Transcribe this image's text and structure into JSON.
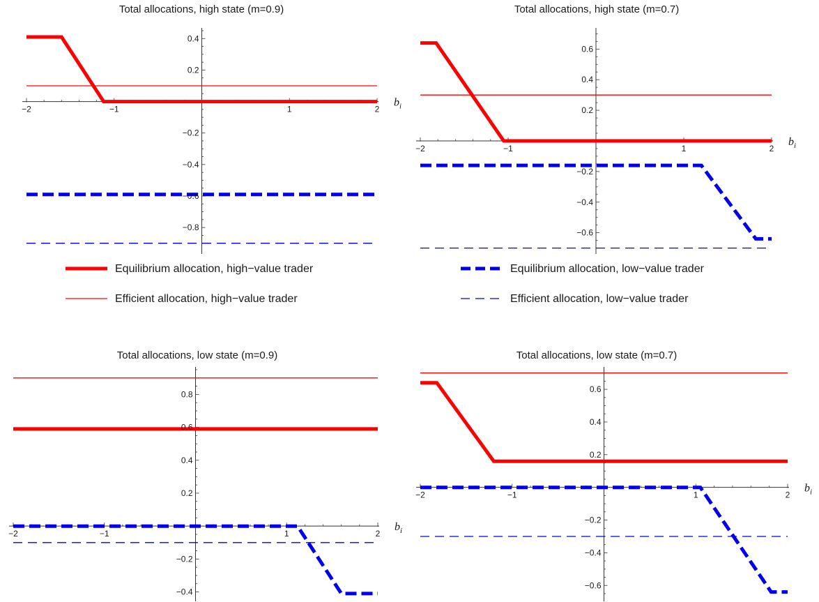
{
  "chart_data": [
    {
      "type": "line",
      "title": "Total allocations, high state (m=0.9)",
      "xlabel": "b",
      "xlabel_sub": "i",
      "xlim": [
        -2,
        2
      ],
      "ylim": [
        -0.95,
        0.45
      ],
      "xticks": [
        {
          "v": -2,
          "label": "−2"
        },
        {
          "v": -1,
          "label": "−1"
        },
        {
          "v": 1,
          "label": "1"
        },
        {
          "v": 2,
          "label": "2"
        }
      ],
      "yticks": [
        {
          "v": 0.4,
          "label": "0.4"
        },
        {
          "v": 0.2,
          "label": "0.2"
        },
        {
          "v": -0.2,
          "label": "−0.2"
        },
        {
          "v": -0.4,
          "label": "−0.4"
        },
        {
          "v": -0.6,
          "label": "−0.6"
        },
        {
          "v": -0.8,
          "label": "−0.8"
        }
      ],
      "series": [
        {
          "key": "eq_high",
          "x": [
            -2,
            -1.6,
            -1.12,
            2
          ],
          "y": [
            0.41,
            0.41,
            0,
            0
          ]
        },
        {
          "key": "eff_high",
          "x": [
            -2,
            2
          ],
          "y": [
            0.1,
            0.1
          ]
        },
        {
          "key": "eq_low",
          "x": [
            -2,
            2
          ],
          "y": [
            -0.59,
            -0.59
          ]
        },
        {
          "key": "eff_low",
          "x": [
            -2,
            2
          ],
          "y": [
            -0.9,
            -0.9
          ]
        }
      ]
    },
    {
      "type": "line",
      "title": "Total allocations, high state (m=0.7)",
      "xlabel": "b",
      "xlabel_sub": "i",
      "xlim": [
        -2,
        2
      ],
      "ylim": [
        -0.72,
        0.72
      ],
      "xticks": [
        {
          "v": -2,
          "label": "−2"
        },
        {
          "v": -1,
          "label": "−1"
        },
        {
          "v": 1,
          "label": "1"
        },
        {
          "v": 2,
          "label": "2"
        }
      ],
      "yticks": [
        {
          "v": 0.6,
          "label": "0.6"
        },
        {
          "v": 0.4,
          "label": "0.4"
        },
        {
          "v": 0.2,
          "label": "0.2"
        },
        {
          "v": -0.2,
          "label": "−0.2"
        },
        {
          "v": -0.4,
          "label": "−0.4"
        },
        {
          "v": -0.6,
          "label": "−0.6"
        }
      ],
      "series": [
        {
          "key": "eq_high",
          "x": [
            -2,
            -1.82,
            -1.05,
            2
          ],
          "y": [
            0.64,
            0.64,
            0,
            0
          ]
        },
        {
          "key": "eff_high",
          "x": [
            -2,
            2
          ],
          "y": [
            0.3,
            0.3
          ]
        },
        {
          "key": "eq_low",
          "x": [
            -2,
            1.2,
            1.82,
            2
          ],
          "y": [
            -0.16,
            -0.16,
            -0.64,
            -0.64
          ]
        },
        {
          "key": "eff_low",
          "x": [
            -2,
            2
          ],
          "y": [
            -0.7,
            -0.7
          ]
        }
      ]
    },
    {
      "type": "line",
      "title": "Total allocations, low state (m=0.9)",
      "xlabel": "b",
      "xlabel_sub": "i",
      "xlim": [
        -2,
        2
      ],
      "ylim": [
        -0.44,
        0.95
      ],
      "xticks": [
        {
          "v": -2,
          "label": "−2"
        },
        {
          "v": -1,
          "label": "−1"
        },
        {
          "v": 1,
          "label": "1"
        },
        {
          "v": 2,
          "label": "2"
        }
      ],
      "yticks": [
        {
          "v": 0.8,
          "label": "0.8"
        },
        {
          "v": 0.6,
          "label": "0.6"
        },
        {
          "v": 0.4,
          "label": "0.4"
        },
        {
          "v": 0.2,
          "label": "0.2"
        },
        {
          "v": -0.2,
          "label": "−0.2"
        },
        {
          "v": -0.4,
          "label": "−0.4"
        }
      ],
      "series": [
        {
          "key": "eq_high",
          "x": [
            -2,
            2
          ],
          "y": [
            0.59,
            0.59
          ]
        },
        {
          "key": "eff_high",
          "x": [
            -2,
            2
          ],
          "y": [
            0.9,
            0.9
          ]
        },
        {
          "key": "eq_low",
          "x": [
            -2,
            1.12,
            1.6,
            2
          ],
          "y": [
            0,
            0,
            -0.41,
            -0.41
          ]
        },
        {
          "key": "eff_low",
          "x": [
            -2,
            2
          ],
          "y": [
            -0.1,
            -0.1
          ]
        }
      ]
    },
    {
      "type": "line",
      "title": "Total allocations, low state (m=0.7)",
      "xlabel": "b",
      "xlabel_sub": "i",
      "xlim": [
        -2,
        2
      ],
      "ylim": [
        -0.68,
        0.72
      ],
      "xticks": [
        {
          "v": -2,
          "label": "−2"
        },
        {
          "v": -1,
          "label": "−1"
        },
        {
          "v": 1,
          "label": "1"
        },
        {
          "v": 2,
          "label": "2"
        }
      ],
      "yticks": [
        {
          "v": 0.6,
          "label": "0.6"
        },
        {
          "v": 0.4,
          "label": "0.4"
        },
        {
          "v": 0.2,
          "label": "0.2"
        },
        {
          "v": -0.2,
          "label": "−0.2"
        },
        {
          "v": -0.4,
          "label": "−0.4"
        },
        {
          "v": -0.6,
          "label": "−0.6"
        }
      ],
      "series": [
        {
          "key": "eq_high",
          "x": [
            -2,
            -1.82,
            -1.2,
            2
          ],
          "y": [
            0.64,
            0.64,
            0.16,
            0.16
          ]
        },
        {
          "key": "eff_high",
          "x": [
            -2,
            2
          ],
          "y": [
            0.7,
            0.7
          ]
        },
        {
          "key": "eq_low",
          "x": [
            -2,
            1.05,
            1.82,
            2
          ],
          "y": [
            0,
            0,
            -0.64,
            -0.64
          ]
        },
        {
          "key": "eff_low",
          "x": [
            -2,
            2
          ],
          "y": [
            -0.3,
            -0.3
          ]
        }
      ]
    }
  ],
  "legend": [
    {
      "key": "eq_high",
      "label": "Equilibrium allocation, high−value trader"
    },
    {
      "key": "eff_high",
      "label": "Efficient allocation, high−value trader"
    },
    {
      "key": "eq_low",
      "label": "Equilibrium allocation, low−value trader"
    },
    {
      "key": "eff_low",
      "label": "Efficient allocation, low−value trader"
    }
  ],
  "colors": {
    "high_value": "#ff0000",
    "low_value": "#0000ee",
    "axis": "#333333"
  }
}
